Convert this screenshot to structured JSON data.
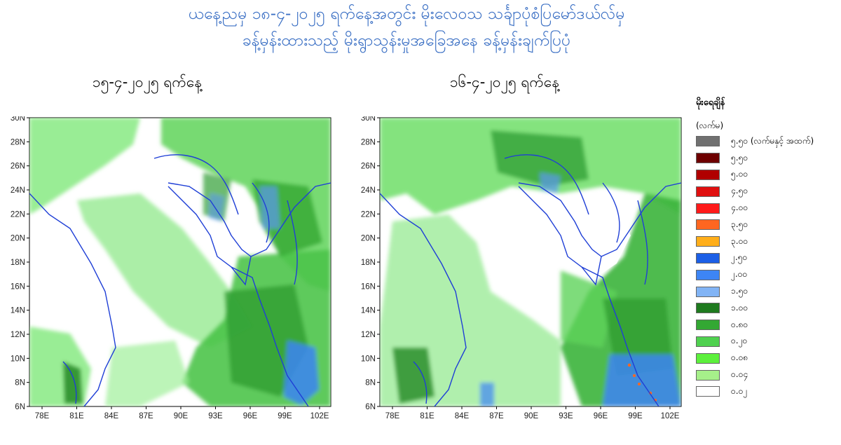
{
  "title_line1": "ယနေ့ညမှ ၁၈-၄-၂၀၂၅ ရက်နေ့အတွင်း မိုးလေဝသ သင်္ချာပုံစံပြမော်ဒယ်လ်မှ",
  "title_line2": "ခန့်မှန်းထားသည့် မိုးရွာသွန်းမှုအခြေအနေ ခန့်မှန်းချက်ပြပုံ",
  "maps": [
    {
      "date_label": "၁၅-၄-၂၀၂၅ ရက်နေ့"
    },
    {
      "date_label": "၁၆-၄-၂၀၂၅ ရက်နေ့"
    }
  ],
  "axes": {
    "lat_ticks": [
      "6N",
      "8N",
      "10N",
      "12N",
      "14N",
      "16N",
      "18N",
      "20N",
      "22N",
      "24N",
      "26N",
      "28N",
      "30N"
    ],
    "lon_ticks": [
      "78E",
      "81E",
      "84E",
      "87E",
      "90E",
      "93E",
      "96E",
      "99E",
      "102E"
    ]
  },
  "legend": {
    "title": "မိုးရေချိန်",
    "unit": "(လက်မ)",
    "items": [
      {
        "label": "၅.၅၀ (လက်မနှင့် အထက်)",
        "color": "#707070"
      },
      {
        "label": "၅.၅၀",
        "color": "#6e0000"
      },
      {
        "label": "၅.၀၀",
        "color": "#b00000"
      },
      {
        "label": "၄.၅၀",
        "color": "#e01010"
      },
      {
        "label": "၄.၀၀",
        "color": "#ff1a1a"
      },
      {
        "label": "၃.၅၀",
        "color": "#ff6620"
      },
      {
        "label": "၃.၀၀",
        "color": "#ffae1a"
      },
      {
        "label": "၂.၅၀",
        "color": "#1c5fe6"
      },
      {
        "label": "၂.၀၀",
        "color": "#3d85f5"
      },
      {
        "label": "၁.၅၀",
        "color": "#82b4f5"
      },
      {
        "label": "၁.၀၀",
        "color": "#1f7a1f"
      },
      {
        "label": "၀.၈၀",
        "color": "#33a833"
      },
      {
        "label": "၀.၂၀",
        "color": "#4fd14f"
      },
      {
        "label": "၀.၀၈",
        "color": "#5cf03c"
      },
      {
        "label": "၀.၀၄",
        "color": "#a6f08a"
      },
      {
        "label": "၀.၀၂",
        "color": "#ffffff"
      }
    ]
  }
}
